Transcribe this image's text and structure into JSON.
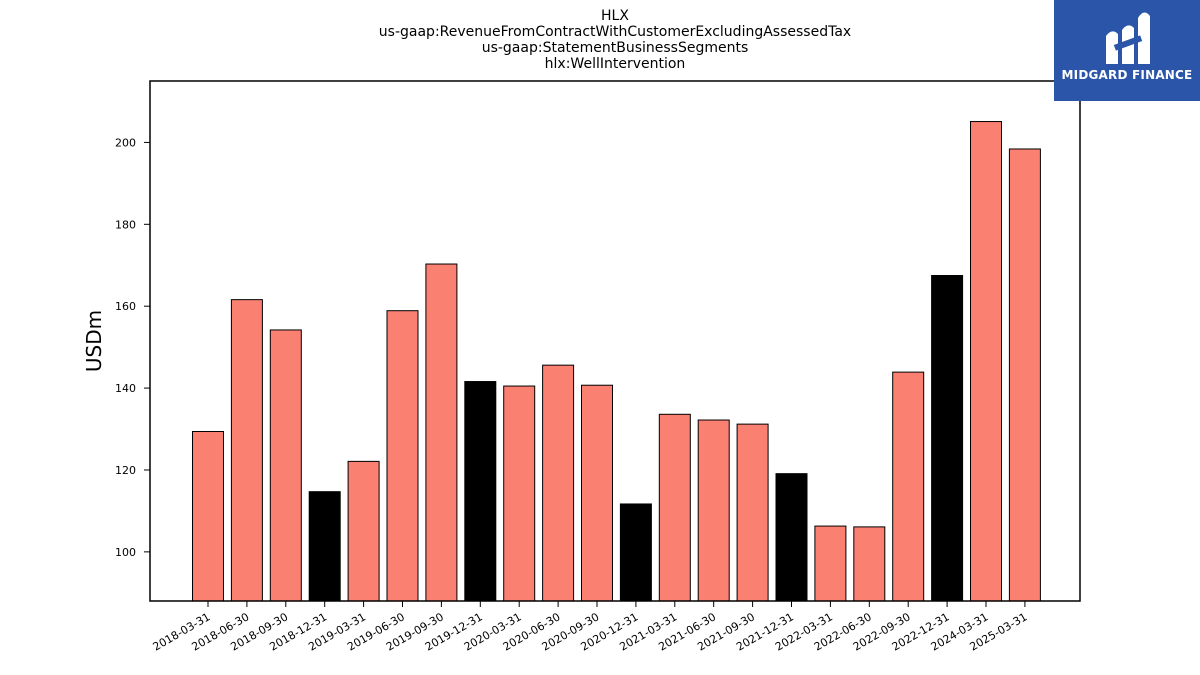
{
  "brand": {
    "name": "MIDGARD FINANCE",
    "background": "#2a55a8"
  },
  "chart_data": {
    "type": "bar",
    "title_lines": [
      "HLX",
      "us-gaap:RevenueFromContractWithCustomerExcludingAssessedTax",
      "us-gaap:StatementBusinessSegments",
      "hlx:WellIntervention"
    ],
    "xlabel": "",
    "ylabel": "USDm",
    "ylim": [
      88,
      215
    ],
    "yticks": [
      100,
      120,
      140,
      160,
      180,
      200
    ],
    "grid": false,
    "colors": {
      "quarter": "#fa8072",
      "year_end": "#000000",
      "edge": "#000000"
    },
    "categories": [
      "2018-03-31",
      "2018-06-30",
      "2018-09-30",
      "2018-12-31",
      "2019-03-31",
      "2019-06-30",
      "2019-09-30",
      "2019-12-31",
      "2020-03-31",
      "2020-06-30",
      "2020-09-30",
      "2020-12-31",
      "2021-03-31",
      "2021-06-30",
      "2021-09-30",
      "2021-12-31",
      "2022-03-31",
      "2022-06-30",
      "2022-09-30",
      "2022-12-31",
      "2024-03-31",
      "2025-03-31"
    ],
    "values": [
      129.4,
      161.6,
      154.2,
      114.7,
      122.1,
      158.9,
      170.3,
      141.6,
      140.5,
      145.6,
      140.7,
      111.7,
      133.6,
      132.2,
      131.2,
      119.1,
      106.3,
      106.1,
      143.9,
      167.5,
      205.1,
      198.4
    ],
    "period_type": [
      "Q",
      "Q",
      "Q",
      "FY",
      "Q",
      "Q",
      "Q",
      "FY",
      "Q",
      "Q",
      "Q",
      "FY",
      "Q",
      "Q",
      "Q",
      "FY",
      "Q",
      "Q",
      "Q",
      "FY",
      "Q",
      "Q"
    ]
  }
}
